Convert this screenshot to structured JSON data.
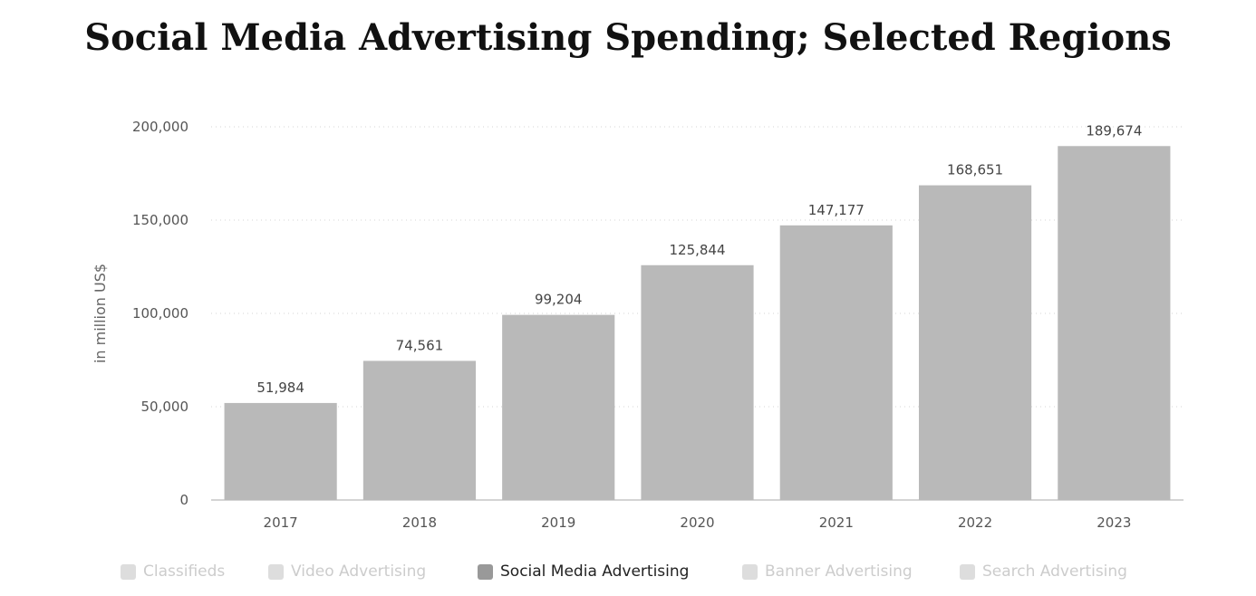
{
  "title": "Social Media Advertising Spending; Selected Regions",
  "chart_data": {
    "type": "bar",
    "title": "Social Media Advertising Spending; Selected Regions",
    "xlabel": "",
    "ylabel": "in million US$",
    "categories": [
      "2017",
      "2018",
      "2019",
      "2020",
      "2021",
      "2022",
      "2023"
    ],
    "values": [
      51984,
      74561,
      99204,
      125844,
      147177,
      168651,
      189674
    ],
    "value_labels": [
      "51,984",
      "74,561",
      "99,204",
      "125,844",
      "147,177",
      "168,651",
      "189,674"
    ],
    "ylim": [
      0,
      200000
    ],
    "yticks": [
      0,
      50000,
      100000,
      150000,
      200000
    ],
    "ytick_labels": [
      "0",
      "50,000",
      "100,000",
      "150,000",
      "200,000"
    ],
    "grid": true,
    "legend_placement": "bottom",
    "bar_color": "#b9b9b9"
  },
  "legend": {
    "items": [
      {
        "label": "Classifieds",
        "active": false
      },
      {
        "label": "Video Advertising",
        "active": false
      },
      {
        "label": "Social Media Advertising",
        "active": true
      },
      {
        "label": "Banner Advertising",
        "active": false
      },
      {
        "label": "Search Advertising",
        "active": false
      }
    ]
  }
}
